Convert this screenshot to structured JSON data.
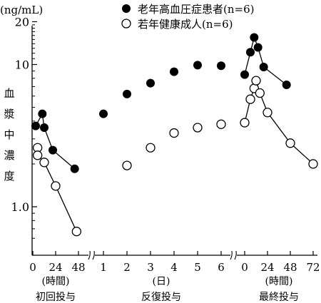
{
  "chart_data": {
    "type": "scatter",
    "title": "",
    "unit_label": "(ng/mL)",
    "ylabel": "血漿中濃度",
    "yscale": "log",
    "ylim": [
      0.5,
      20
    ],
    "yticks": [
      {
        "value": 20,
        "label": "20"
      },
      {
        "value": 10,
        "label": "10"
      },
      {
        "value": 1,
        "label": "1.0"
      }
    ],
    "panels": [
      {
        "name": "初回投与",
        "unit": "(時間)",
        "ticks": [
          {
            "x": 0,
            "label": "0"
          },
          {
            "x": 24,
            "label": "24"
          },
          {
            "x": 48,
            "label": "48"
          }
        ]
      },
      {
        "name": "反復投与",
        "unit": "(日)",
        "ticks": [
          {
            "x": 1,
            "label": "1"
          },
          {
            "x": 2,
            "label": "2"
          },
          {
            "x": 3,
            "label": "3"
          },
          {
            "x": 4,
            "label": "4"
          },
          {
            "x": 5,
            "label": "5"
          },
          {
            "x": 6,
            "label": "6"
          }
        ]
      },
      {
        "name": "最終投与",
        "unit": "(時間)",
        "ticks": [
          {
            "x": 0,
            "label": "0"
          },
          {
            "x": 24,
            "label": "24"
          },
          {
            "x": 48,
            "label": "48"
          },
          {
            "x": 72,
            "label": "72"
          }
        ]
      }
    ],
    "series": [
      {
        "name": "老年高血圧症患者(n=6)",
        "marker": "filled",
        "color": "#000000",
        "first_dose": [
          [
            3,
            3.7
          ],
          [
            10,
            4.5
          ],
          [
            12,
            3.6
          ],
          [
            21,
            2.5
          ],
          [
            44,
            1.85
          ]
        ],
        "repeat_dose": [
          [
            1,
            4.5
          ],
          [
            2,
            6.2
          ],
          [
            3,
            7.4
          ],
          [
            4,
            8.9
          ],
          [
            5,
            9.9
          ],
          [
            6,
            9.8
          ]
        ],
        "last_dose": [
          [
            0,
            8.5
          ],
          [
            6,
            12.2
          ],
          [
            10,
            15.5
          ],
          [
            14,
            13.2
          ],
          [
            20,
            9.6
          ],
          [
            44,
            7.2
          ]
        ]
      },
      {
        "name": "若年健康成人(n=6)",
        "marker": "open",
        "color": "#000000",
        "first_dose": [
          [
            5,
            2.6
          ],
          [
            5,
            2.3
          ],
          [
            12,
            2.05
          ],
          [
            24,
            1.4
          ],
          [
            46,
            0.67
          ]
        ],
        "repeat_dose": [
          [
            2,
            1.95
          ],
          [
            3,
            2.6
          ],
          [
            4,
            3.3
          ],
          [
            5,
            3.6
          ],
          [
            6,
            3.8
          ]
        ],
        "last_dose": [
          [
            0,
            3.9
          ],
          [
            6,
            5.7
          ],
          [
            10,
            6.8
          ],
          [
            12,
            7.7
          ],
          [
            16,
            6.3
          ],
          [
            24,
            4.6
          ],
          [
            48,
            2.8
          ],
          [
            72,
            2.0
          ]
        ]
      }
    ]
  }
}
